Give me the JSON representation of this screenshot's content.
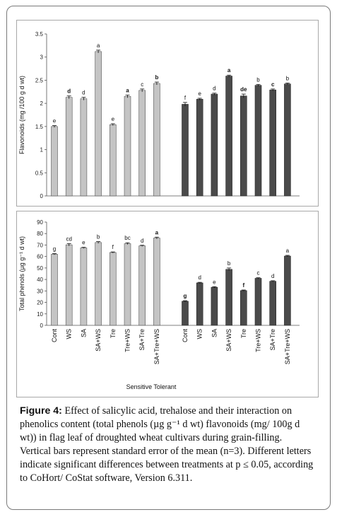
{
  "chart_data": [
    {
      "type": "bar",
      "ylabel": "Flavonoids (mg /100 g d wt)",
      "ylim": [
        0,
        3.5
      ],
      "yticks": [
        "0",
        "0.5",
        "1",
        "1.5",
        "2",
        "2.5",
        "3",
        "3.5"
      ],
      "bar_colors": {
        "sensitive": "#c4c4c4",
        "tolerant": "#4a4a4a"
      },
      "series": [
        {
          "values": [
            1.5,
            2.13,
            2.1,
            3.12,
            1.54,
            2.15,
            2.28,
            2.43
          ],
          "errors": [
            0.02,
            0.03,
            0.03,
            0.03,
            0.02,
            0.03,
            0.03,
            0.03
          ],
          "letters": [
            "e",
            "d",
            "d",
            "a",
            "e",
            "a",
            "c",
            "b"
          ],
          "bold": [
            false,
            true,
            false,
            false,
            false,
            true,
            false,
            true
          ]
        },
        {
          "values": [
            1.98,
            2.09,
            2.2,
            2.59,
            2.16,
            2.39,
            2.29,
            2.42
          ],
          "errors": [
            0.04,
            0.02,
            0.02,
            0.02,
            0.04,
            0.02,
            0.02,
            0.02
          ],
          "letters": [
            "f",
            "e",
            "d",
            "a",
            "de",
            "b",
            "c",
            "b"
          ],
          "bold": [
            false,
            false,
            false,
            true,
            true,
            false,
            true,
            false
          ]
        }
      ]
    },
    {
      "type": "bar",
      "ylabel": "Total phenols (µg g⁻¹ d wt)",
      "ylim": [
        0,
        90
      ],
      "yticks": [
        "0",
        "10",
        "20",
        "30",
        "40",
        "50",
        "60",
        "70",
        "80",
        "90"
      ],
      "categories": [
        "Cont",
        "WS",
        "SA",
        "SA+WS",
        "Tre",
        "Tre+WS",
        "SA+Tre",
        "SA+Tre+WS"
      ],
      "xlabel": "Sensitive Tolerant",
      "bar_colors": {
        "sensitive": "#c4c4c4",
        "tolerant": "#4a4a4a"
      },
      "series": [
        {
          "values": [
            62,
            70.2,
            67.5,
            72.2,
            63.5,
            71.2,
            69.3,
            76.1
          ],
          "errors": [
            0.5,
            1.0,
            0.5,
            0.8,
            0.5,
            0.8,
            0.5,
            0.8
          ],
          "letters": [
            "g",
            "cd",
            "e",
            "b",
            "f",
            "bc",
            "d",
            "a"
          ],
          "bold": [
            false,
            false,
            false,
            false,
            false,
            false,
            false,
            true
          ]
        },
        {
          "values": [
            21,
            37,
            33.2,
            48.8,
            30.3,
            41,
            38.4,
            60.4
          ],
          "errors": [
            0.5,
            0.5,
            0.5,
            1.2,
            0.5,
            0.5,
            0.5,
            0.6
          ],
          "letters": [
            "g",
            "d",
            "e",
            "b",
            "f",
            "c",
            "d",
            "a"
          ],
          "bold": [
            true,
            false,
            false,
            false,
            true,
            false,
            false,
            false
          ]
        }
      ]
    }
  ],
  "caption": {
    "label": "Figure 4:",
    "text": "Effect of salicylic acid, trehalose and their interaction on phenolics content (total phenols (µg g⁻¹ d wt) flavonoids (mg/ 100g d wt)) in flag leaf of droughted wheat cultivars during grain-filling. Vertical bars represent standard error of the mean (n=3). Different letters indicate significant differences between treatments at p ≤ 0.05, according to CoHort/ CoStat software, Version 6.311."
  }
}
